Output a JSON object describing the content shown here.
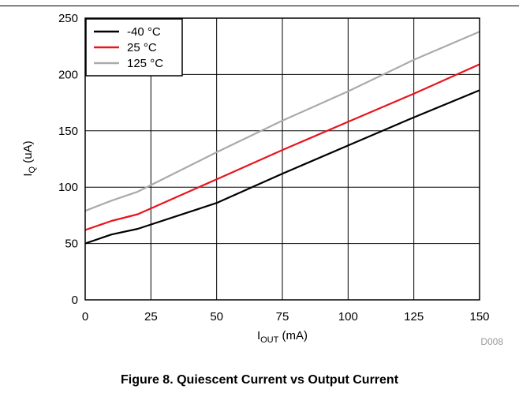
{
  "chart_data": {
    "type": "line",
    "xlabel": {
      "main": "I",
      "sub": "OUT",
      "unit": " (mA)"
    },
    "ylabel": {
      "main": "I",
      "sub": "Q",
      "unit": " (uA)"
    },
    "xlim": [
      0,
      150
    ],
    "ylim": [
      0,
      250
    ],
    "xticks": [
      "0",
      "25",
      "50",
      "75",
      "100",
      "125",
      "150"
    ],
    "yticks": [
      "0",
      "50",
      "100",
      "150",
      "200",
      "250"
    ],
    "grid": true,
    "legend_position": "top-left",
    "series": [
      {
        "name": "-40 °C",
        "color": "#000000",
        "x": [
          0,
          10,
          20,
          50,
          75,
          100,
          125,
          150
        ],
        "y": [
          50,
          58,
          63,
          86,
          112,
          137,
          162,
          186
        ]
      },
      {
        "name": "25 °C",
        "color": "#e8141e",
        "x": [
          0,
          10,
          20,
          50,
          75,
          100,
          125,
          150
        ],
        "y": [
          62,
          70,
          76,
          107,
          133,
          158,
          183,
          209
        ]
      },
      {
        "name": "125 °C",
        "color": "#aaaaaa",
        "x": [
          0,
          10,
          20,
          50,
          75,
          100,
          125,
          150
        ],
        "y": [
          79,
          88,
          96,
          131,
          159,
          185,
          213,
          238
        ]
      }
    ],
    "code_label": "D008"
  },
  "caption": "Figure 8. Quiescent Current vs Output Current"
}
